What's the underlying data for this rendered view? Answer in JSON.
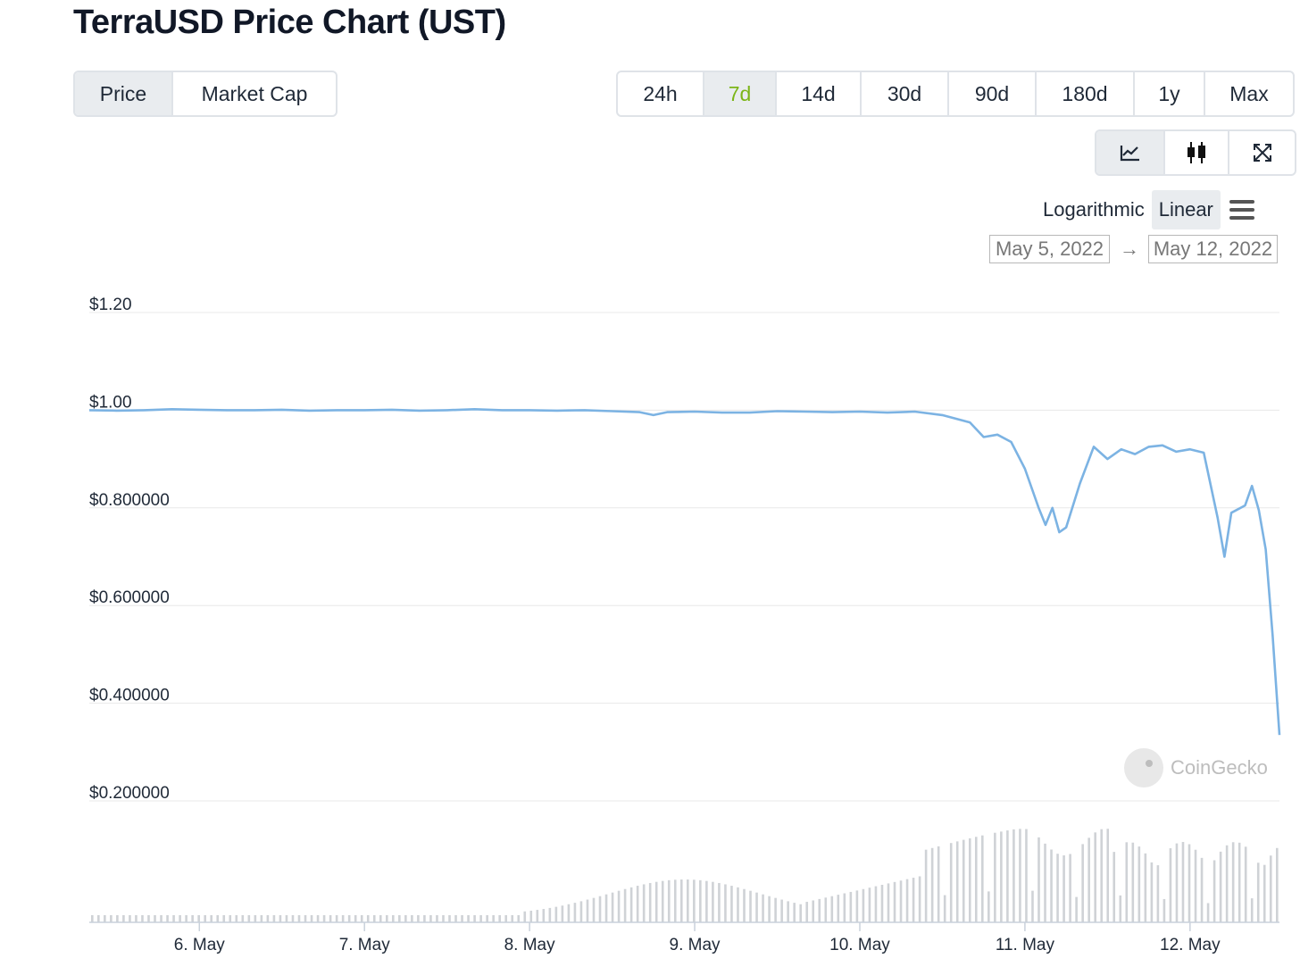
{
  "page": {
    "title": "TerraUSD Price Chart (UST)"
  },
  "chart_type_tabs": [
    {
      "label": "Price",
      "active": true
    },
    {
      "label": "Market Cap",
      "active": false
    }
  ],
  "range_tabs": [
    {
      "label": "24h",
      "active": false
    },
    {
      "label": "7d",
      "active": true
    },
    {
      "label": "14d",
      "active": false
    },
    {
      "label": "30d",
      "active": false
    },
    {
      "label": "90d",
      "active": false
    },
    {
      "label": "180d",
      "active": false
    },
    {
      "label": "1y",
      "active": false
    },
    {
      "label": "Max",
      "active": false
    }
  ],
  "view_buttons": [
    {
      "icon": "line-chart-icon",
      "active": true
    },
    {
      "icon": "candlestick-icon",
      "active": false
    },
    {
      "icon": "expand-icon",
      "active": false
    }
  ],
  "scale": {
    "options": [
      "Logarithmic",
      "Linear"
    ],
    "selected": "Linear",
    "menu_icon": "hamburger-menu-icon"
  },
  "date_range": {
    "from": "May 5, 2022",
    "to": "May 12, 2022",
    "separator": "→"
  },
  "watermark": {
    "text": "CoinGecko",
    "icon": "coingecko-logo-icon"
  },
  "colors": {
    "line": "#7cb3e3",
    "volume": "#cfd2d6",
    "grid": "#e8e8e8",
    "accent_green": "#7cb518",
    "active_bg": "#e9ecef"
  },
  "chart_data": {
    "type": "line",
    "title": "TerraUSD Price Chart (UST)",
    "xlabel": "",
    "ylabel": "",
    "x_ticks": [
      "6. May",
      "7. May",
      "8. May",
      "9. May",
      "10. May",
      "11. May",
      "12. May"
    ],
    "y_ticks": [
      "$1.20",
      "$1.00",
      "$0.800000",
      "$0.600000",
      "$0.400000",
      "$0.200000"
    ],
    "y_tick_values": [
      1.2,
      1.0,
      0.8,
      0.6,
      0.4,
      0.2
    ],
    "xlim": [
      "2022-05-05T08:00",
      "2022-05-12T13:00"
    ],
    "ylim": [
      0.2,
      1.2
    ],
    "grid": true,
    "legend": false,
    "series": [
      {
        "values": [
          [
            "2022-05-05T08:00",
            1.0
          ],
          [
            "2022-05-05T12:00",
            0.999
          ],
          [
            "2022-05-05T16:00",
            1.0
          ],
          [
            "2022-05-05T20:00",
            1.002
          ],
          [
            "2022-05-06T00:00",
            1.001
          ],
          [
            "2022-05-06T04:00",
            1.0
          ],
          [
            "2022-05-06T08:00",
            1.0
          ],
          [
            "2022-05-06T12:00",
            1.001
          ],
          [
            "2022-05-06T16:00",
            0.999
          ],
          [
            "2022-05-06T20:00",
            1.0
          ],
          [
            "2022-05-07T00:00",
            1.0
          ],
          [
            "2022-05-07T04:00",
            1.001
          ],
          [
            "2022-05-07T08:00",
            0.999
          ],
          [
            "2022-05-07T12:00",
            1.0
          ],
          [
            "2022-05-07T16:00",
            1.002
          ],
          [
            "2022-05-07T20:00",
            1.0
          ],
          [
            "2022-05-08T00:00",
            1.0
          ],
          [
            "2022-05-08T04:00",
            0.999
          ],
          [
            "2022-05-08T08:00",
            1.0
          ],
          [
            "2022-05-08T12:00",
            0.998
          ],
          [
            "2022-05-08T16:00",
            0.996
          ],
          [
            "2022-05-08T18:00",
            0.99
          ],
          [
            "2022-05-08T20:00",
            0.996
          ],
          [
            "2022-05-09T00:00",
            0.997
          ],
          [
            "2022-05-09T04:00",
            0.995
          ],
          [
            "2022-05-09T08:00",
            0.995
          ],
          [
            "2022-05-09T12:00",
            0.998
          ],
          [
            "2022-05-09T16:00",
            0.997
          ],
          [
            "2022-05-09T20:00",
            0.996
          ],
          [
            "2022-05-10T00:00",
            0.997
          ],
          [
            "2022-05-10T04:00",
            0.995
          ],
          [
            "2022-05-10T08:00",
            0.997
          ],
          [
            "2022-05-10T12:00",
            0.99
          ],
          [
            "2022-05-10T16:00",
            0.975
          ],
          [
            "2022-05-10T18:00",
            0.945
          ],
          [
            "2022-05-10T20:00",
            0.95
          ],
          [
            "2022-05-10T22:00",
            0.935
          ],
          [
            "2022-05-11T00:00",
            0.88
          ],
          [
            "2022-05-11T02:00",
            0.8
          ],
          [
            "2022-05-11T03:00",
            0.765
          ],
          [
            "2022-05-11T04:00",
            0.8
          ],
          [
            "2022-05-11T05:00",
            0.75
          ],
          [
            "2022-05-11T06:00",
            0.76
          ],
          [
            "2022-05-11T08:00",
            0.85
          ],
          [
            "2022-05-11T10:00",
            0.925
          ],
          [
            "2022-05-11T12:00",
            0.9
          ],
          [
            "2022-05-11T14:00",
            0.92
          ],
          [
            "2022-05-11T16:00",
            0.91
          ],
          [
            "2022-05-11T18:00",
            0.925
          ],
          [
            "2022-05-11T20:00",
            0.928
          ],
          [
            "2022-05-11T22:00",
            0.915
          ],
          [
            "2022-05-12T00:00",
            0.92
          ],
          [
            "2022-05-12T02:00",
            0.913
          ],
          [
            "2022-05-12T04:00",
            0.78
          ],
          [
            "2022-05-12T05:00",
            0.7
          ],
          [
            "2022-05-12T06:00",
            0.79
          ],
          [
            "2022-05-12T08:00",
            0.805
          ],
          [
            "2022-05-12T09:00",
            0.845
          ],
          [
            "2022-05-12T10:00",
            0.795
          ],
          [
            "2022-05-12T11:00",
            0.715
          ],
          [
            "2022-05-12T12:00",
            0.54
          ],
          [
            "2022-05-12T13:00",
            0.335
          ]
        ]
      }
    ],
    "volume": {
      "unit": "relative"
    }
  }
}
